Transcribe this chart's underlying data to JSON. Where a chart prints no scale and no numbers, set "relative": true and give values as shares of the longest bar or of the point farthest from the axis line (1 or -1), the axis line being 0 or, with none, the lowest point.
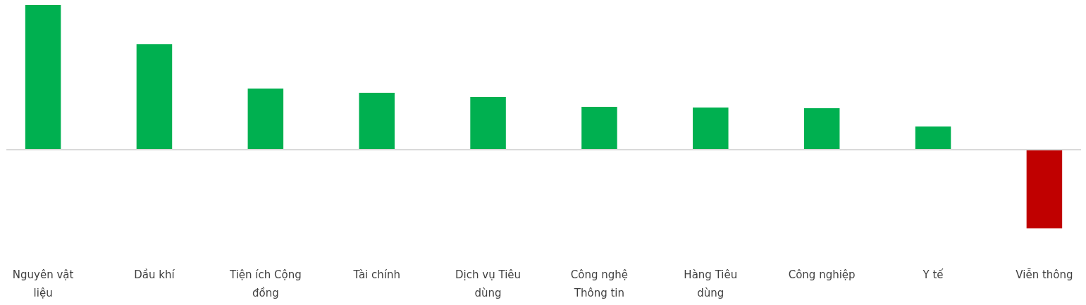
{
  "chart_data": {
    "type": "bar",
    "relative": true,
    "categories": [
      "Nguyên vật liệu",
      "Dầu khí",
      "Tiện ích Cộng đồng",
      "Tài chính",
      "Dịch vụ Tiêu dùng",
      "Công nghệ Thông tin",
      "Hàng Tiêu dùng",
      "Công nghiệp",
      "Y tế",
      "Viễn thông"
    ],
    "values": [
      1,
      0.728,
      0.422,
      0.393,
      0.364,
      0.296,
      0.291,
      0.286,
      0.16,
      -0.544
    ],
    "colors": [
      "#00b050",
      "#00b050",
      "#00b050",
      "#00b050",
      "#00b050",
      "#00b050",
      "#00b050",
      "#00b050",
      "#00b050",
      "#c00000"
    ]
  }
}
